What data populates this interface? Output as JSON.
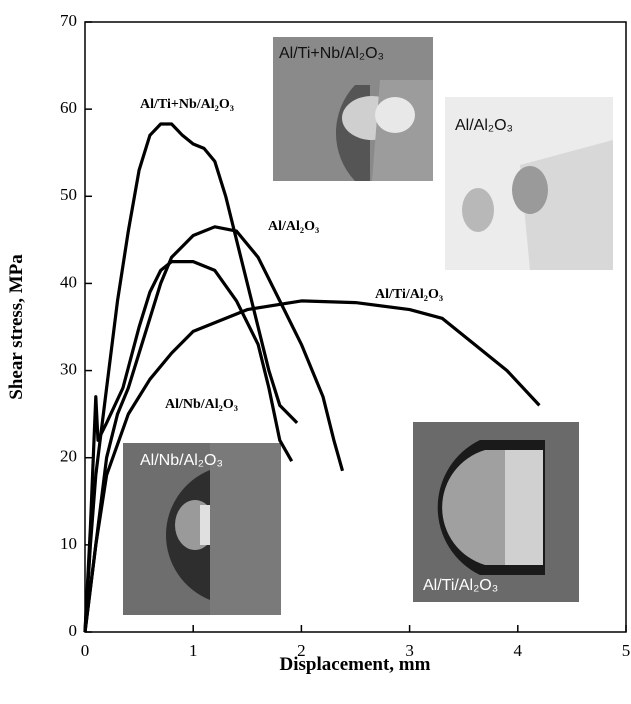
{
  "chart_data": {
    "type": "line",
    "x_label": "Displacement, mm",
    "y_label": "Shear stress, MPa",
    "xlim": [
      0,
      5
    ],
    "xticks": [
      0,
      1,
      2,
      3,
      4,
      5
    ],
    "ylim": [
      0,
      70
    ],
    "yticks": [
      0,
      10,
      20,
      30,
      40,
      50,
      60,
      70
    ],
    "series": [
      {
        "name": "Al/Ti+Nb/Al₂O₃",
        "color": "#000000",
        "x": [
          0,
          0.05,
          0.1,
          0.2,
          0.3,
          0.4,
          0.5,
          0.6,
          0.7,
          0.8,
          0.9,
          1.0,
          1.1,
          1.2,
          1.3,
          1.4,
          1.5,
          1.6,
          1.7,
          1.8,
          1.96
        ],
        "values": [
          0,
          10,
          18,
          28,
          38,
          46,
          53,
          57,
          58.3,
          58.3,
          57,
          56,
          55.5,
          54,
          50,
          45,
          40,
          35,
          30,
          26,
          24
        ]
      },
      {
        "name": "Al/Al₂O₃",
        "color": "#000000",
        "x": [
          0,
          0.1,
          0.2,
          0.3,
          0.4,
          0.5,
          0.6,
          0.7,
          0.8,
          1.0,
          1.2,
          1.4,
          1.6,
          1.8,
          2.0,
          2.2,
          2.3,
          2.38
        ],
        "values": [
          0,
          10,
          20,
          25,
          28,
          32,
          36,
          40,
          43,
          45.5,
          46.5,
          46,
          43,
          38,
          33,
          27,
          22,
          18.5
        ]
      },
      {
        "name": "Al/Ti/Al₂O₃",
        "color": "#000000",
        "x": [
          0,
          0.1,
          0.2,
          0.4,
          0.6,
          0.8,
          1.0,
          1.5,
          2.0,
          2.5,
          3.0,
          3.3,
          3.6,
          3.9,
          4.2
        ],
        "values": [
          0,
          10,
          18,
          25,
          29,
          32,
          34.5,
          37,
          38,
          37.8,
          37,
          36,
          33,
          30,
          26
        ]
      },
      {
        "name": "Al/Nb/Al₂O₃",
        "color": "#000000",
        "x": [
          0,
          0.05,
          0.1,
          0.12,
          0.2,
          0.35,
          0.5,
          0.6,
          0.7,
          0.8,
          1.0,
          1.2,
          1.4,
          1.6,
          1.7,
          1.8,
          1.91
        ],
        "values": [
          0,
          12,
          27,
          22,
          24,
          28,
          35,
          39,
          41.5,
          42.5,
          42.5,
          41.5,
          38,
          33,
          28,
          22,
          19.6
        ]
      }
    ],
    "insets": [
      {
        "label": "Al/Ti+Nb/Al₂O₃"
      },
      {
        "label": "Al/Al₂O₃"
      },
      {
        "label": "Al/Nb/Al₂O₃"
      },
      {
        "label": "Al/Ti/Al₂O₃"
      }
    ]
  }
}
